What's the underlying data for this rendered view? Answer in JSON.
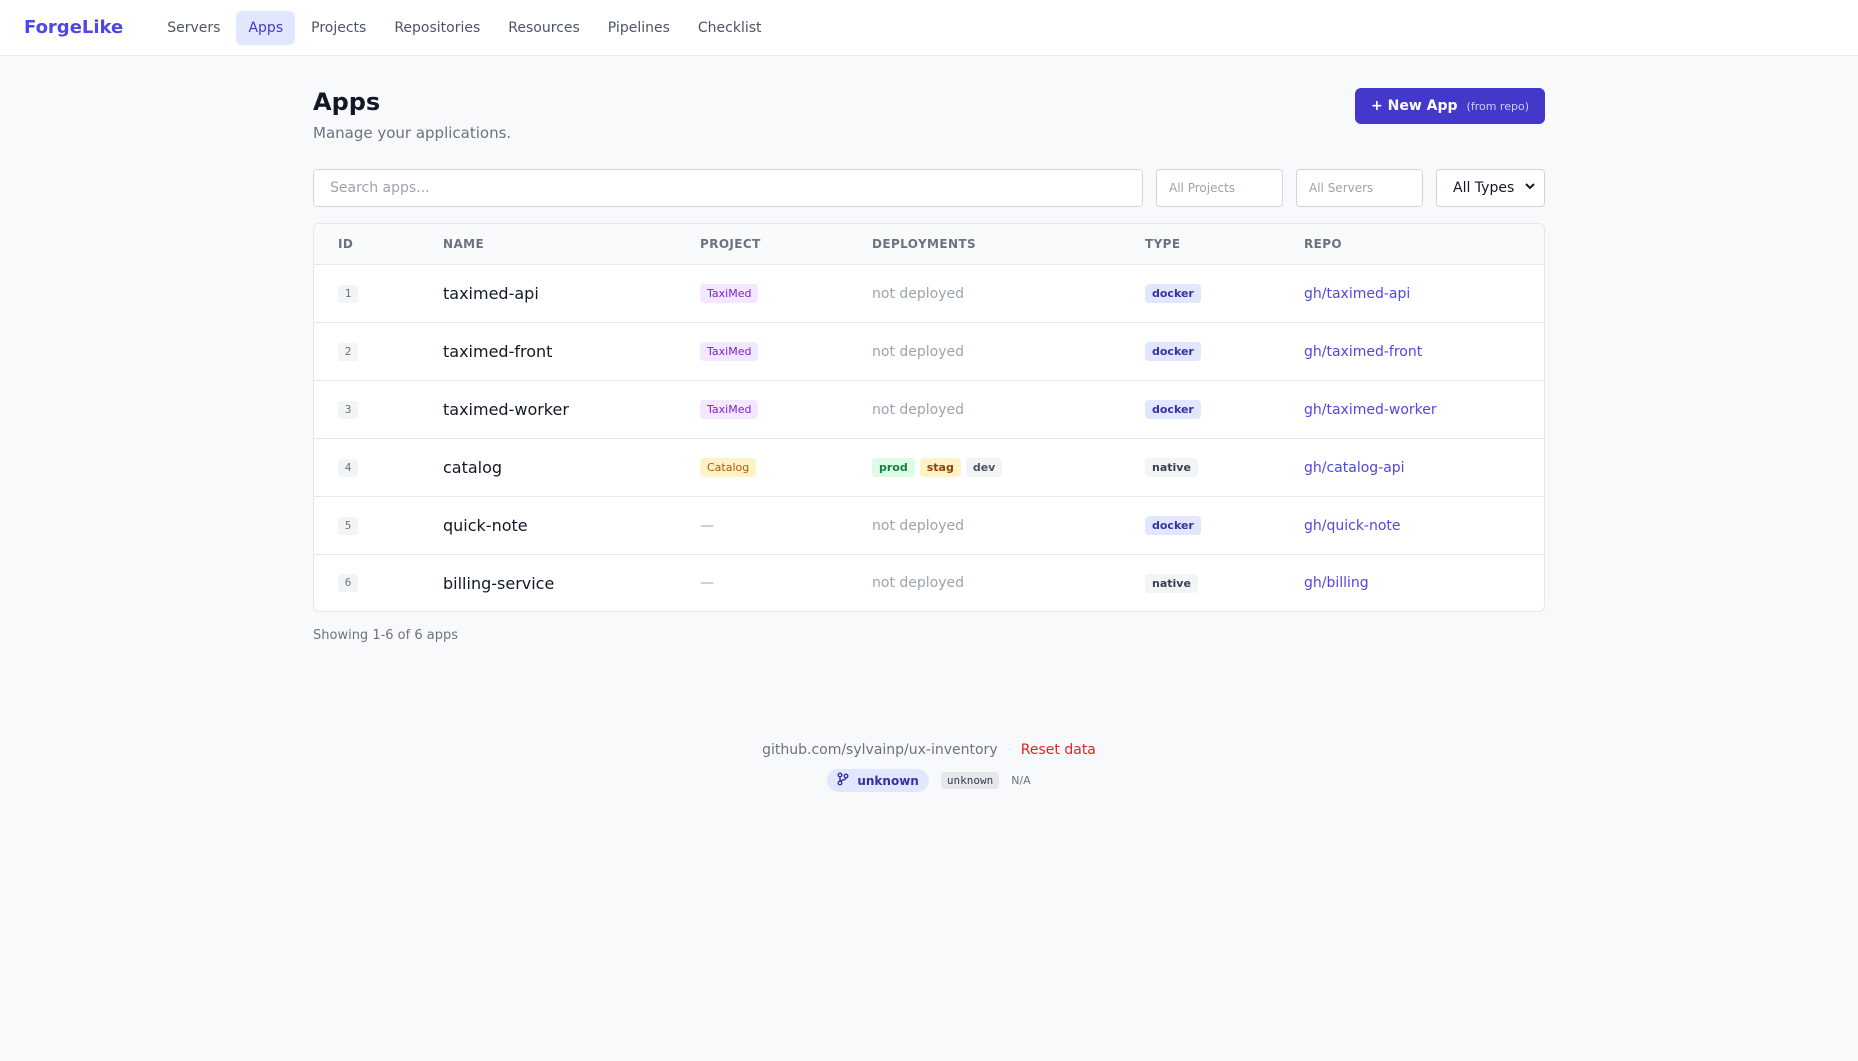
{
  "nav": {
    "brand": "ForgeLike",
    "items": [
      {
        "label": "Servers",
        "active": false
      },
      {
        "label": "Apps",
        "active": true
      },
      {
        "label": "Projects",
        "active": false
      },
      {
        "label": "Repositories",
        "active": false
      },
      {
        "label": "Resources",
        "active": false
      },
      {
        "label": "Pipelines",
        "active": false
      },
      {
        "label": "Checklist",
        "active": false
      }
    ]
  },
  "header": {
    "title": "Apps",
    "subtitle": "Manage your applications.",
    "new_button_label": "+ New App",
    "new_button_sub": "(from repo)"
  },
  "filters": {
    "search_placeholder": "Search apps...",
    "projects_placeholder": "All Projects",
    "servers_placeholder": "All Servers",
    "type_value": "All Types"
  },
  "table": {
    "headers": [
      "ID",
      "NAME",
      "PROJECT",
      "DEPLOYMENTS",
      "TYPE",
      "REPO"
    ],
    "rows": [
      {
        "id": "1",
        "name": "taximed-api",
        "project": "TaxiMed",
        "deployments": "not deployed",
        "type": "docker",
        "repo": "gh/taximed-api"
      },
      {
        "id": "2",
        "name": "taximed-front",
        "project": "TaxiMed",
        "deployments": "not deployed",
        "type": "docker",
        "repo": "gh/taximed-front"
      },
      {
        "id": "3",
        "name": "taximed-worker",
        "project": "TaxiMed",
        "deployments": "not deployed",
        "type": "docker",
        "repo": "gh/taximed-worker"
      },
      {
        "id": "4",
        "name": "catalog",
        "project": "Catalog",
        "deployments": [
          "prod",
          "stag",
          "dev"
        ],
        "type": "native",
        "repo": "gh/catalog-api"
      },
      {
        "id": "5",
        "name": "quick-note",
        "project": "—",
        "deployments": "not deployed",
        "type": "docker",
        "repo": "gh/quick-note"
      },
      {
        "id": "6",
        "name": "billing-service",
        "project": "—",
        "deployments": "not deployed",
        "type": "native",
        "repo": "gh/billing"
      }
    ]
  },
  "showing": "Showing 1-6 of 6 apps",
  "footer": {
    "repo_link": "github.com/sylvainp/ux-inventory",
    "separator": "·",
    "reset_label": "Reset data",
    "branch": "unknown",
    "commit": "unknown",
    "date": "N/A"
  },
  "colors": {
    "accent": "#4f46e5",
    "button": "#4338ca",
    "danger": "#dc2626"
  }
}
